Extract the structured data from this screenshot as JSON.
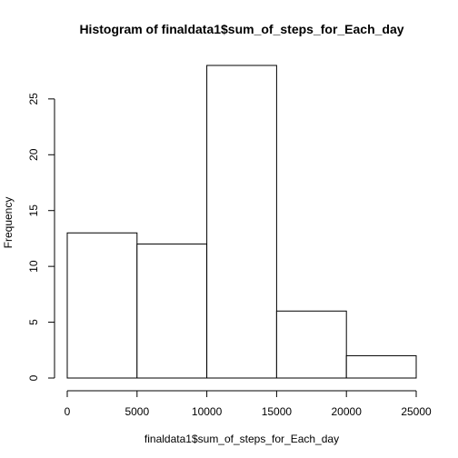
{
  "chart_data": {
    "type": "bar",
    "title": "Histogram of finaldata1$sum_of_steps_for_Each_day",
    "xlabel": "finaldata1$sum_of_steps_for_Each_day",
    "ylabel": "Frequency",
    "bins": [
      {
        "start": 0,
        "end": 5000,
        "count": 13
      },
      {
        "start": 5000,
        "end": 10000,
        "count": 12
      },
      {
        "start": 10000,
        "end": 15000,
        "count": 28
      },
      {
        "start": 15000,
        "end": 20000,
        "count": 6
      },
      {
        "start": 20000,
        "end": 25000,
        "count": 2
      }
    ],
    "x_ticks": [
      0,
      5000,
      10000,
      15000,
      20000,
      25000
    ],
    "y_ticks": [
      0,
      5,
      10,
      15,
      20,
      25
    ],
    "xlim": [
      0,
      25000
    ],
    "ylim": [
      0,
      28
    ],
    "grid": false,
    "colors": {
      "bar_fill": "#ffffff",
      "bar_stroke": "#000000"
    }
  }
}
